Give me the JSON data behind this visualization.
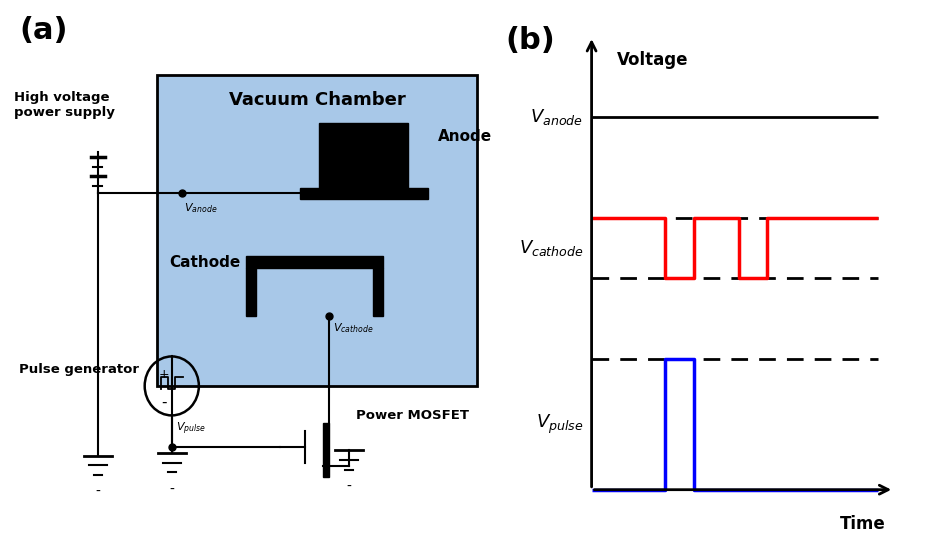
{
  "fig_width": 9.29,
  "fig_height": 5.36,
  "dpi": 100,
  "panel_a_label": "(a)",
  "panel_b_label": "(b)",
  "vacuum_chamber_label": "Vacuum Chamber",
  "anode_label": "Anode",
  "cathode_label": "Cathode",
  "hv_label": "High voltage\npower supply",
  "pulse_gen_label": "Pulse generator",
  "mosfet_label": "Power MOSFET",
  "chamber_bg": "#a8c8e8",
  "voltage_label": "Voltage",
  "time_label": "Time",
  "line_width": 2.0,
  "pulse_lw": 2.5
}
